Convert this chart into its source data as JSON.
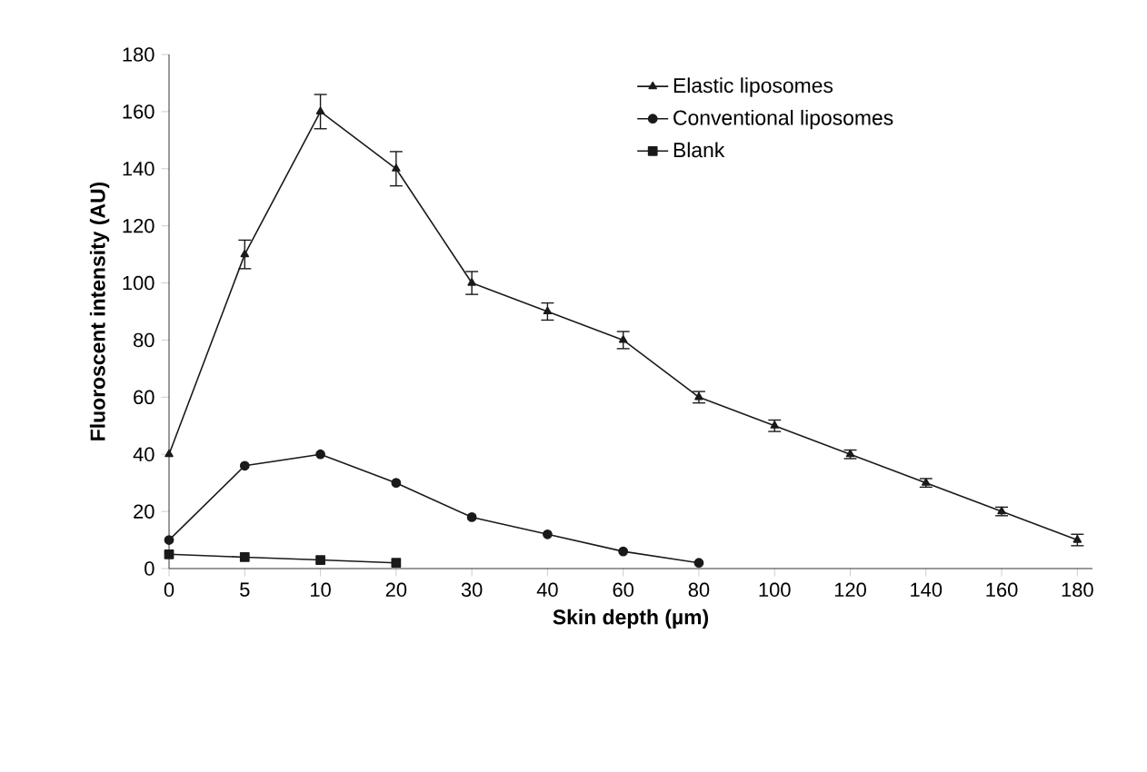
{
  "chart_data": {
    "type": "line",
    "xlabel": "Skin depth (µm)",
    "ylabel": "Fluoroscent intensity (AU)",
    "categories": [
      "0",
      "5",
      "10",
      "20",
      "30",
      "40",
      "60",
      "80",
      "100",
      "120",
      "140",
      "160",
      "180"
    ],
    "series": [
      {
        "name": "Elastic liposomes",
        "color": "#1a1a1a",
        "marker": "triangle",
        "values": [
          40,
          110,
          160,
          140,
          100,
          90,
          80,
          60,
          50,
          40,
          30,
          20,
          10
        ],
        "errors": [
          null,
          5,
          6,
          6,
          4,
          3,
          3,
          2,
          2,
          1.5,
          1.5,
          1.5,
          2
        ]
      },
      {
        "name": "Conventional liposomes",
        "color": "#1a1a1a",
        "marker": "circle",
        "values": [
          10,
          36,
          40,
          30,
          18,
          12,
          6,
          2,
          null,
          null,
          null,
          null,
          null
        ]
      },
      {
        "name": "Blank",
        "color": "#1a1a1a",
        "marker": "square",
        "values": [
          5,
          4,
          3,
          2,
          null,
          null,
          null,
          null,
          null,
          null,
          null,
          null,
          null
        ]
      }
    ],
    "ylim": [
      0,
      180
    ],
    "yticks": [
      0,
      20,
      40,
      60,
      80,
      100,
      120,
      140,
      160,
      180
    ],
    "legend": "top right",
    "grid": false,
    "line_style": "solid"
  }
}
